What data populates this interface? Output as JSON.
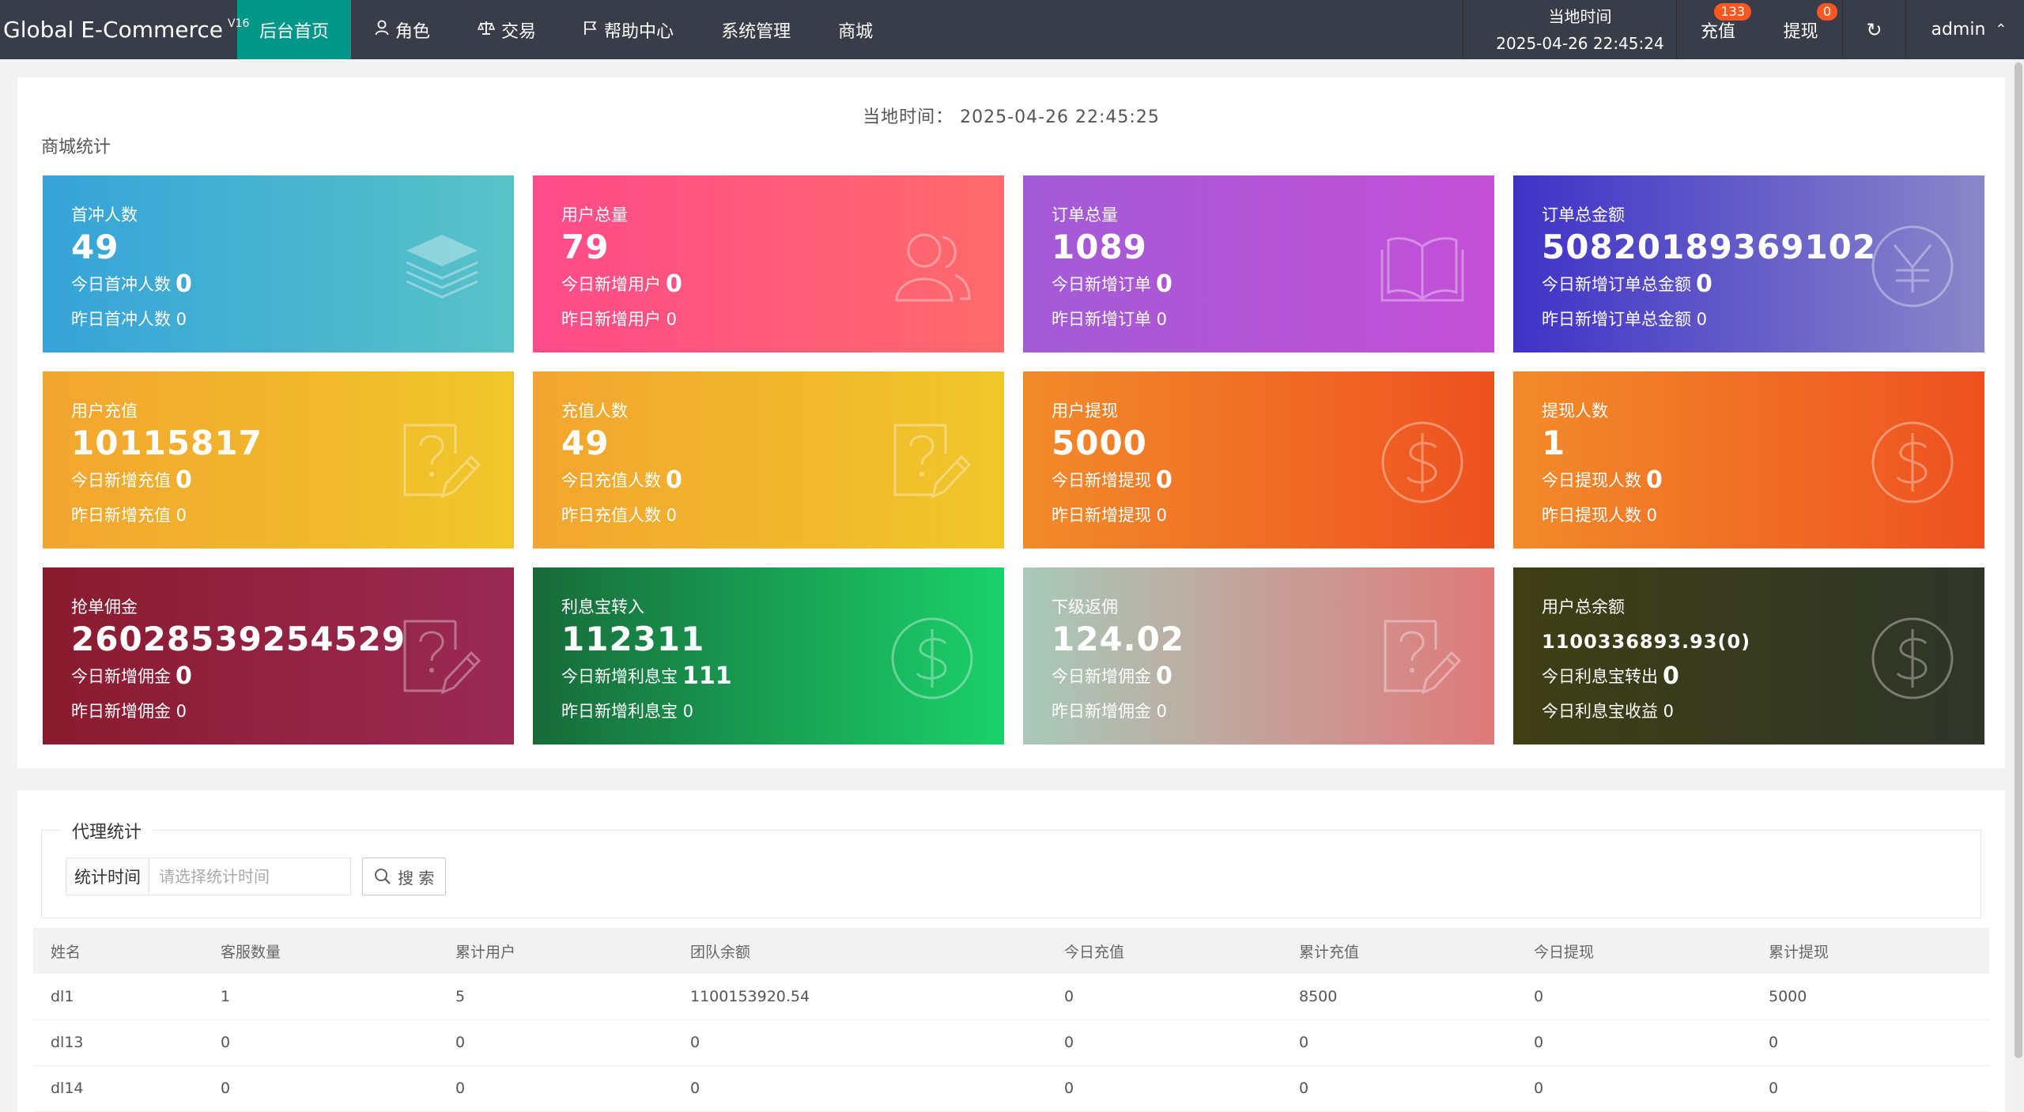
{
  "header": {
    "brand": "Global E-Commerce",
    "version": "V16",
    "nav": [
      {
        "label": "后台首页",
        "icon": "",
        "active": true
      },
      {
        "label": "角色",
        "icon": "user-icon"
      },
      {
        "label": "交易",
        "icon": "scale-icon"
      },
      {
        "label": "帮助中心",
        "icon": "flag-icon"
      },
      {
        "label": "系统管理",
        "icon": ""
      },
      {
        "label": "商城",
        "icon": ""
      }
    ],
    "time_label": "当地时间",
    "time_value": "2025-04-26 22:45:24",
    "recharge_label": "充值",
    "recharge_badge": "133",
    "withdraw_label": "提现",
    "withdraw_badge": "0",
    "user": "admin"
  },
  "stats": {
    "local_time": "当地时间：  2025-04-26 22:45:25",
    "section_title": "商城统计",
    "cards": [
      {
        "title": "首冲人数",
        "value": "49",
        "today_label": "今日首冲人数",
        "today": "0",
        "yest": "昨日首冲人数 0",
        "icon": "layers-icon",
        "bg": "linear-gradient(90deg,#36a3d9,#58c3c7)"
      },
      {
        "title": "用户总量",
        "value": "79",
        "today_label": "今日新增用户",
        "today": "0",
        "yest": "昨日新增用户 0",
        "icon": "users-icon",
        "bg": "linear-gradient(90deg,#ff4b8b,#ff6a6a)"
      },
      {
        "title": "订单总量",
        "value": "1089",
        "today_label": "今日新增订单",
        "today": "0",
        "yest": "昨日新增订单 0",
        "icon": "book-icon",
        "bg": "linear-gradient(90deg,#a25bd6,#c44fd7)"
      },
      {
        "title": "订单总金额",
        "value": "50820189369102",
        "today_label": "今日新增订单总金额",
        "today": "0",
        "yest": "昨日新增订单总金额 0",
        "icon": "yen-icon",
        "bg": "linear-gradient(90deg,#3f32c8,#8a87c9)"
      },
      {
        "title": "用户充值",
        "value": "10115817",
        "today_label": "今日新增充值",
        "today": "0",
        "yest": "昨日新增充值 0",
        "icon": "edit-question-icon",
        "bg": "linear-gradient(90deg,#f2a52f,#f0c72a)"
      },
      {
        "title": "充值人数",
        "value": "49",
        "today_label": "今日充值人数",
        "today": "0",
        "yest": "昨日充值人数 0",
        "icon": "edit-question-icon",
        "bg": "linear-gradient(90deg,#f2a52f,#f0c72a)"
      },
      {
        "title": "用户提现",
        "value": "5000",
        "today_label": "今日新增提现",
        "today": "0",
        "yest": "昨日新增提现 0",
        "icon": "dollar-icon",
        "bg": "linear-gradient(90deg,#f28b2a,#ee5120)"
      },
      {
        "title": "提现人数",
        "value": "1",
        "today_label": "今日提现人数",
        "today": "0",
        "yest": "昨日提现人数 0",
        "icon": "dollar-icon",
        "bg": "linear-gradient(90deg,#f28b2a,#ee5120)"
      },
      {
        "title": "抢单佣金",
        "value": "26028539254529",
        "today_label": "今日新增佣金",
        "today": "0",
        "yest": "昨日新增佣金 0",
        "icon": "edit-question-icon",
        "bg": "linear-gradient(90deg,#8a1b2e,#9a2a55)"
      },
      {
        "title": "利息宝转入",
        "value": "112311",
        "today_label": "今日新增利息宝",
        "today": "111",
        "yest": "昨日新增利息宝 0",
        "icon": "dollar-icon",
        "bg": "linear-gradient(90deg,#176b3a,#1ad16a)"
      },
      {
        "title": "下级返佣",
        "value": "124.02",
        "today_label": "今日新增佣金",
        "today": "0",
        "yest": "昨日新增佣金 0",
        "icon": "edit-question-icon",
        "bg": "linear-gradient(90deg,#a8c9b9,#e07a7a)"
      },
      {
        "title": "用户总余额",
        "value": "1100336893.93(0)",
        "value_small": true,
        "today_label": "今日利息宝转出",
        "today": "0",
        "yest": "今日利息宝收益 0",
        "icon": "dollar-icon",
        "bg": "linear-gradient(90deg,#3e3f14,#2f3529)"
      }
    ]
  },
  "agent": {
    "legend": "代理统计",
    "date_label": "统计时间",
    "date_placeholder": "请选择统计时间",
    "search_label": "搜 索",
    "columns": [
      "姓名",
      "客服数量",
      "累计用户",
      "团队余额",
      "今日充值",
      "累计充值",
      "今日提现",
      "累计提现"
    ],
    "rows": [
      [
        "dl1",
        "1",
        "5",
        "1100153920.54",
        "0",
        "8500",
        "0",
        "5000"
      ],
      [
        "dl13",
        "0",
        "0",
        "0",
        "0",
        "0",
        "0",
        "0"
      ],
      [
        "dl14",
        "0",
        "0",
        "0",
        "0",
        "0",
        "0",
        "0"
      ]
    ]
  }
}
